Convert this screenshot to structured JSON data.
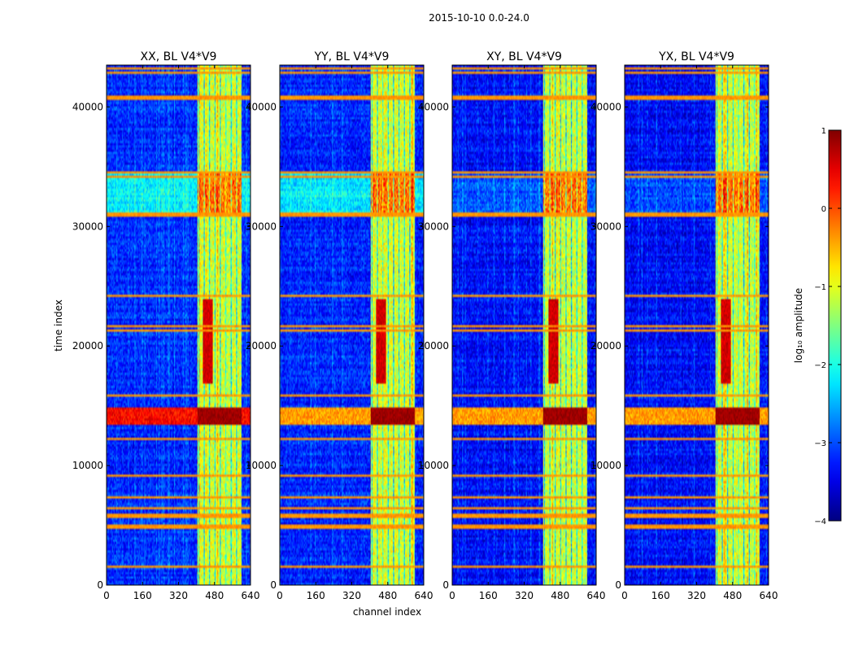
{
  "chart_data": {
    "type": "heatmap",
    "suptitle": "2015-10-10 0.0-24.0",
    "xlabel": "channel index",
    "ylabel": "time index",
    "xlim": [
      0,
      640
    ],
    "ylim": [
      0,
      43500
    ],
    "x_ticks": [
      0,
      160,
      320,
      480,
      640
    ],
    "x_tick_labels": [
      "0",
      "160",
      "320",
      "480",
      "640"
    ],
    "y_ticks": [
      0,
      10000,
      20000,
      30000,
      40000
    ],
    "y_tick_labels": [
      "0",
      "10000",
      "20000",
      "30000",
      "40000"
    ],
    "colormap": "jet",
    "colorbar": {
      "label": "log₁₀ amplitude",
      "range": [
        -4,
        1
      ],
      "ticks": [
        1,
        0,
        -1,
        -2,
        -3,
        -4
      ],
      "tick_labels": [
        "1",
        "0",
        "−1",
        "−2",
        "−3",
        "−4"
      ]
    },
    "panels": [
      {
        "title": "XX, BL V4*V9",
        "variant": 0
      },
      {
        "title": "YY, BL V4*V9",
        "variant": 1
      },
      {
        "title": "XY, BL V4*V9",
        "variant": 2
      },
      {
        "title": "YX, BL V4*V9",
        "variant": 3
      }
    ],
    "features": {
      "rfi_channel_band": [
        405,
        600
      ],
      "hot_channel_band": [
        430,
        470
      ],
      "strong_rfi_time_band": [
        13500,
        14900
      ],
      "hot_time_band": [
        16800,
        24000
      ],
      "flagged_time_rows": [
        1600,
        4900,
        5800,
        6400,
        7300,
        9100,
        12200,
        15800,
        21300,
        21700,
        24200,
        31000,
        34100,
        34500,
        40800,
        42800,
        43200
      ],
      "elevated_time_band": [
        31000,
        34500
      ]
    }
  }
}
